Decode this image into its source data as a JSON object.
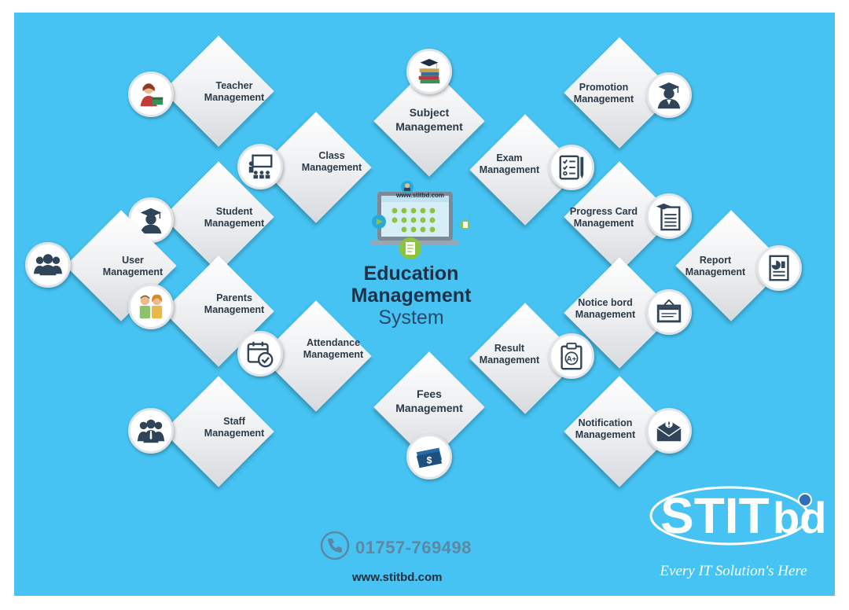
{
  "poster": {
    "center_title_line1": "Education",
    "center_title_line2": "Management",
    "center_title_line3": "System",
    "screen_url": "www.stitbd.com",
    "phone": "01757-769498",
    "website": "www.stitbd.com",
    "logo_text": "STITbd",
    "tagline": "Every IT Solution's Here"
  },
  "tiles": {
    "teacher": [
      "Teacher",
      "Management"
    ],
    "class": [
      "Class",
      "Management"
    ],
    "student": [
      "Student",
      "Management"
    ],
    "user": [
      "User",
      "Management"
    ],
    "parents": [
      "Parents",
      "Management"
    ],
    "attendance": [
      "Attendance",
      "Management"
    ],
    "staff": [
      "Staff",
      "Management"
    ],
    "subject": [
      "Subject",
      "Management"
    ],
    "fees": [
      "Fees",
      "Management"
    ],
    "promotion": [
      "Promotion",
      "Management"
    ],
    "exam": [
      "Exam",
      "Management"
    ],
    "progress": [
      "Progress Card",
      "Management"
    ],
    "report": [
      "Report",
      "Management"
    ],
    "notice": [
      "Notice bord",
      "Management"
    ],
    "result": [
      "Result",
      "Management"
    ],
    "notification": [
      "Notification",
      "Management"
    ]
  },
  "icons": {
    "teacher": "teacher-icon",
    "class": "classroom-icon",
    "student": "graduate-icon",
    "user": "users-icon",
    "parents": "parents-icon",
    "attendance": "calendar-check-icon",
    "staff": "staff-icon",
    "subject": "books-icon",
    "fees": "money-icon",
    "promotion": "graduate-cap-icon",
    "exam": "checklist-icon",
    "progress": "report-card-icon",
    "report": "report-chart-icon",
    "notice": "notice-board-icon",
    "result": "grade-clipboard-icon",
    "notification": "mail-alert-icon"
  },
  "colors": {
    "background": "#46c3f2",
    "tile_text": "#2b3a4a",
    "title_text": "#1f3148",
    "icon_dark": "#2f4458"
  }
}
